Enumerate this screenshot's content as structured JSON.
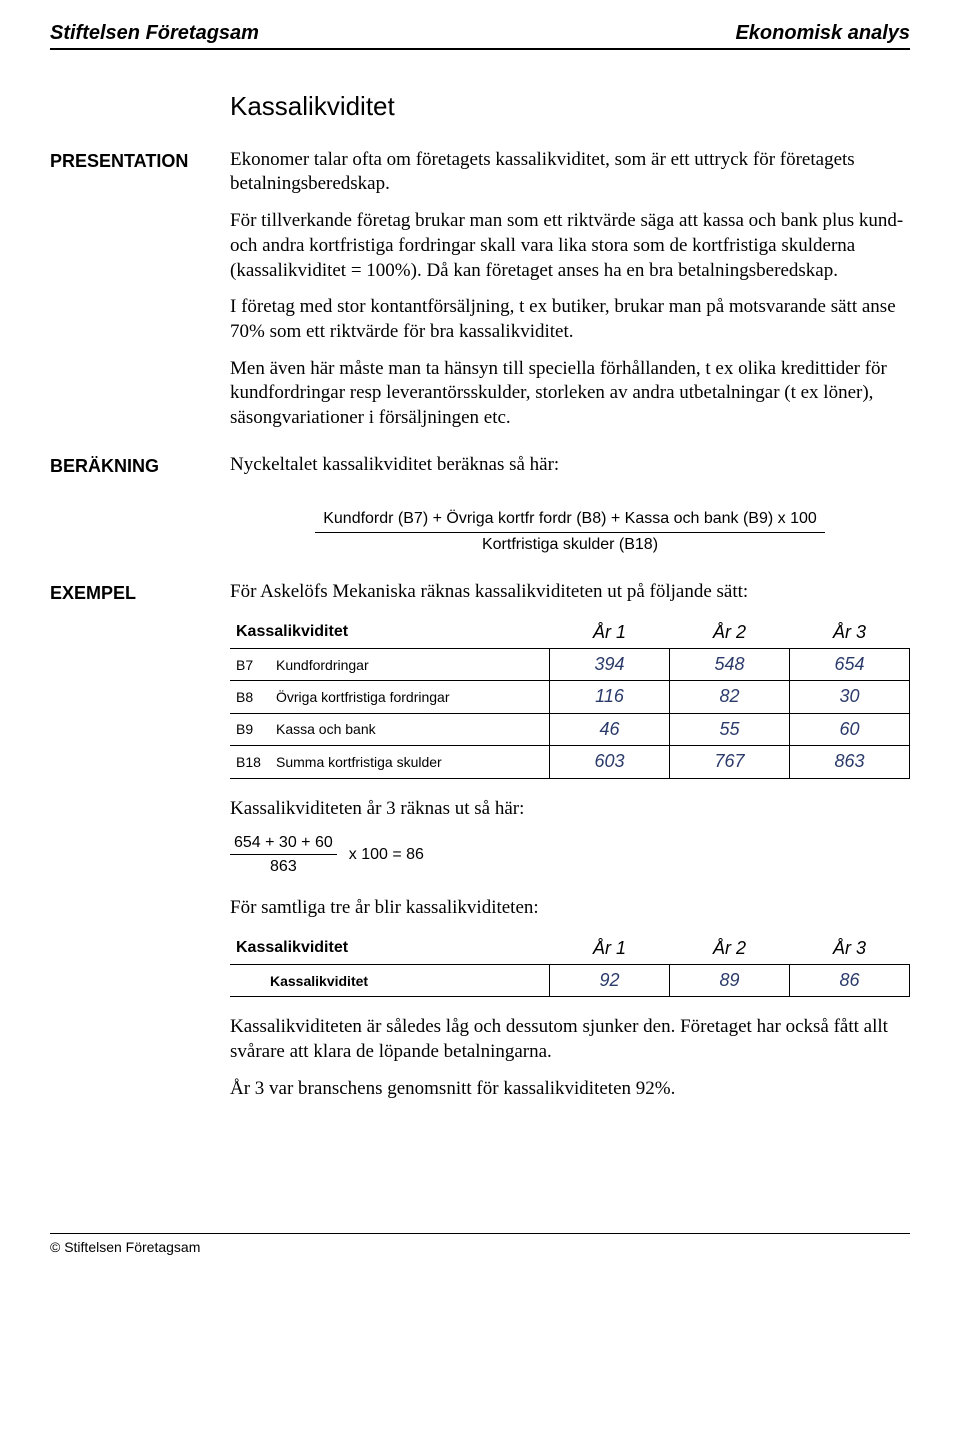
{
  "header": {
    "left": "Stiftelsen Företagsam",
    "right": "Ekonomisk analys"
  },
  "labels": {
    "presentation": "PRESENTATION",
    "berakning": "BERÄKNING",
    "exempel": "EXEMPEL"
  },
  "title": "Kassalikviditet",
  "paragraphs": {
    "p1": "Ekonomer talar ofta om företagets kassalikviditet, som är ett uttryck för företagets betalningsberedskap.",
    "p2": "För tillverkande företag brukar man som ett riktvärde säga att kassa och bank plus kund- och andra kortfristiga fordringar skall vara lika stora som de kortfristiga skulderna (kassalikviditet = 100%). Då kan företaget anses ha en bra betalningsberedskap.",
    "p3": "I företag med stor kontantförsäljning, t ex butiker, brukar man på motsvarande sätt anse 70% som ett riktvärde för bra kassalikviditet.",
    "p4": "Men även här måste man ta hänsyn till speciella förhållanden, t ex olika kredittider för kundfordringar resp leverantörsskulder, storleken av andra utbetalningar (t ex löner), säsongvariationer i försäljningen etc.",
    "berakning_intro": "Nyckeltalet kassalikviditet beräknas så här:",
    "exempel_intro": "För Askelöfs Mekaniska räknas kassalikviditeten ut på följande sätt:",
    "calc_intro": "Kassalikviditeten år 3 räknas ut så här:",
    "all_years_intro": "För samtliga tre år blir kassalikviditeten:",
    "conclusion1": "Kassalikviditeten är således låg och dessutom sjunker den. Företaget har också fått allt svårare att klara de löpande betalningarna.",
    "conclusion2": "År 3 var branschens genomsnitt för kassalikviditeten 92%."
  },
  "formula": {
    "numerator": "Kundfordr (B7) + Övriga kortfr fordr (B8) + Kassa och bank (B9) x 100",
    "denominator": "Kortfristiga skulder (B18)"
  },
  "table1": {
    "title": "Kassalikviditet",
    "years": [
      "År 1",
      "År 2",
      "År 3"
    ],
    "rows": [
      {
        "code": "B7",
        "desc": "Kundfordringar",
        "vals": [
          "394",
          "548",
          "654"
        ]
      },
      {
        "code": "B8",
        "desc": "Övriga kortfristiga fordringar",
        "vals": [
          "116",
          "82",
          "30"
        ]
      },
      {
        "code": "B9",
        "desc": "Kassa och bank",
        "vals": [
          "46",
          "55",
          "60"
        ]
      },
      {
        "code": "B18",
        "desc": "Summa kortfristiga skulder",
        "vals": [
          "603",
          "767",
          "863"
        ]
      }
    ],
    "value_color": "#2a3a6a"
  },
  "calc": {
    "top": "654 + 30 + 60",
    "bot": "863",
    "rest": "x 100 = 86"
  },
  "table2": {
    "title": "Kassalikviditet",
    "years": [
      "År 1",
      "År 2",
      "År 3"
    ],
    "row_label": "Kassalikviditet",
    "vals": [
      "92",
      "89",
      "86"
    ],
    "value_color": "#2a3a6a"
  },
  "footer": "© Stiftelsen Företagsam"
}
